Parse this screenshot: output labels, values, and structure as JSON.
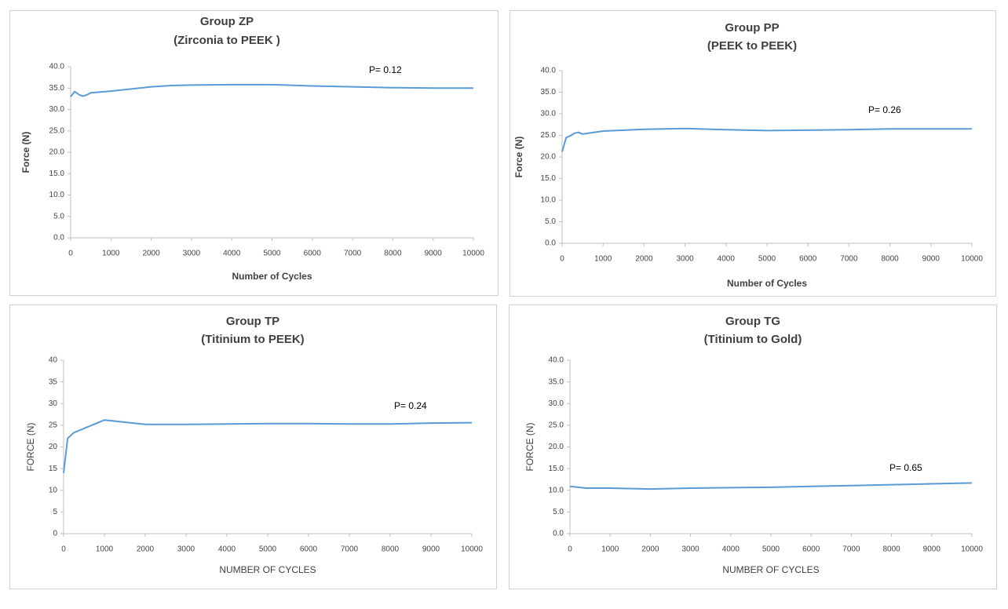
{
  "chart_data": [
    {
      "type": "line",
      "title": "Group ZP",
      "subtitle": "(Zirconia to PEEK )",
      "x_label": "Number of Cycles",
      "y_label": "Force (N)",
      "annotation": "P= 0.12",
      "x": [
        0,
        100,
        200,
        300,
        400,
        500,
        1000,
        2000,
        2500,
        3000,
        4000,
        5000,
        6000,
        7000,
        8000,
        9000,
        10000
      ],
      "series": [
        {
          "name": "Group ZP",
          "color": "#5b9bd5",
          "values": [
            33.0,
            34.2,
            33.5,
            33.1,
            33.4,
            33.9,
            34.3,
            35.3,
            35.6,
            35.7,
            35.8,
            35.8,
            35.5,
            35.3,
            35.1,
            35.0,
            35.0
          ]
        }
      ],
      "xlim": [
        0,
        10000
      ],
      "xticks": [
        0,
        1000,
        2000,
        3000,
        4000,
        5000,
        6000,
        7000,
        8000,
        9000,
        10000
      ],
      "ylim": [
        0,
        40
      ],
      "yticks": [
        {
          "value": 0,
          "label": "0.0"
        },
        {
          "value": 5,
          "label": "5.0"
        },
        {
          "value": 10,
          "label": "10.0"
        },
        {
          "value": 15,
          "label": "15.0"
        },
        {
          "value": 20,
          "label": "20.0"
        },
        {
          "value": 25,
          "label": "25.0"
        },
        {
          "value": 30,
          "label": "30.0"
        },
        {
          "value": 35,
          "label": "35.0"
        },
        {
          "value": 40,
          "label": "40.0"
        }
      ],
      "grid": false
    },
    {
      "type": "line",
      "title": "Group PP",
      "subtitle": "(PEEK to PEEK)",
      "x_label": "Number of Cycles",
      "y_label": "Force (N)",
      "annotation": "P= 0.26",
      "x": [
        0,
        100,
        200,
        300,
        400,
        500,
        1000,
        2000,
        3000,
        4000,
        5000,
        6000,
        7000,
        8000,
        9000,
        10000
      ],
      "series": [
        {
          "name": "Group PP",
          "color": "#5b9bd5",
          "values": [
            21.2,
            24.5,
            24.9,
            25.5,
            25.7,
            25.3,
            26.0,
            26.4,
            26.6,
            26.3,
            26.1,
            26.2,
            26.3,
            26.5,
            26.5,
            26.5
          ]
        }
      ],
      "xlim": [
        0,
        10000
      ],
      "xticks": [
        0,
        1000,
        2000,
        3000,
        4000,
        5000,
        6000,
        7000,
        8000,
        9000,
        10000
      ],
      "ylim": [
        0,
        40
      ],
      "yticks": [
        {
          "value": 0,
          "label": "0.0"
        },
        {
          "value": 5,
          "label": "5.0"
        },
        {
          "value": 10,
          "label": "10.0"
        },
        {
          "value": 15,
          "label": "15.0"
        },
        {
          "value": 20,
          "label": "20.0"
        },
        {
          "value": 25,
          "label": "25.0"
        },
        {
          "value": 30,
          "label": "30.0"
        },
        {
          "value": 35,
          "label": "35.0"
        },
        {
          "value": 40,
          "label": "40.0"
        }
      ],
      "grid": false
    },
    {
      "type": "line",
      "title": "Group TP",
      "subtitle": "(Titinium to PEEK)",
      "x_label": "NUMBER OF CYCLES",
      "y_label": "FORCE (N)",
      "annotation": "P= 0.24",
      "x": [
        0,
        100,
        250,
        1000,
        2000,
        3000,
        4000,
        5000,
        6000,
        7000,
        8000,
        9000,
        10000
      ],
      "series": [
        {
          "name": "Group TP",
          "color": "#5b9bd5",
          "values": [
            14,
            22,
            23.3,
            26.2,
            25.2,
            25.2,
            25.3,
            25.4,
            25.4,
            25.3,
            25.3,
            25.5,
            25.6
          ]
        }
      ],
      "xlim": [
        0,
        10000
      ],
      "xticks": [
        0,
        1000,
        2000,
        3000,
        4000,
        5000,
        6000,
        7000,
        8000,
        9000,
        10000
      ],
      "ylim": [
        0,
        40
      ],
      "yticks": [
        0,
        5,
        10,
        15,
        20,
        25,
        30,
        35,
        40
      ],
      "grid": false
    },
    {
      "type": "line",
      "title": "Group TG",
      "subtitle": "(Titinium to Gold)",
      "x_label": "NUMBER OF CYCLES",
      "y_label": "FORCE (N)",
      "annotation": "P= 0.65",
      "x": [
        0,
        100,
        400,
        1000,
        2000,
        3000,
        4000,
        5000,
        6000,
        7000,
        8000,
        9000,
        10000
      ],
      "series": [
        {
          "name": "Group TG",
          "color": "#5b9bd5",
          "values": [
            10.9,
            10.8,
            10.5,
            10.5,
            10.3,
            10.5,
            10.6,
            10.7,
            10.9,
            11.1,
            11.3,
            11.5,
            11.7
          ]
        }
      ],
      "xlim": [
        0,
        10000
      ],
      "xticks": [
        0,
        1000,
        2000,
        3000,
        4000,
        5000,
        6000,
        7000,
        8000,
        9000,
        10000
      ],
      "ylim": [
        0,
        40
      ],
      "yticks": [
        {
          "value": 0,
          "label": "0.0"
        },
        {
          "value": 5,
          "label": "5.0"
        },
        {
          "value": 10,
          "label": "10.0"
        },
        {
          "value": 15,
          "label": "15.0"
        },
        {
          "value": 20,
          "label": "20.0"
        },
        {
          "value": 25,
          "label": "25.0"
        },
        {
          "value": 30,
          "label": "30.0"
        },
        {
          "value": 35,
          "label": "35.0"
        },
        {
          "value": 40,
          "label": "40.0"
        }
      ],
      "grid": false
    }
  ]
}
